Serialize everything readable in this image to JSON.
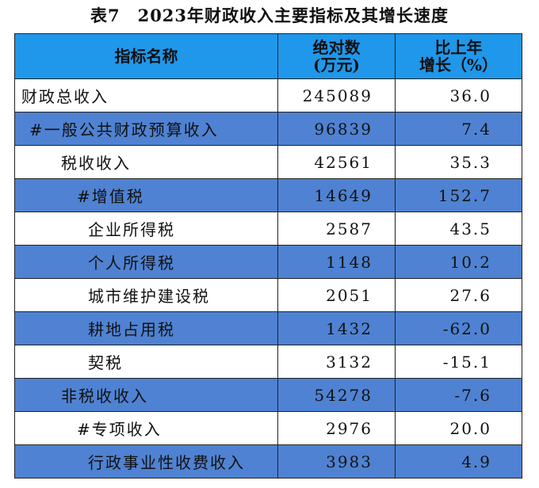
{
  "title": "表7　2023年财政收入主要指标及其增长速度",
  "table": {
    "header": [
      [
        "指标名称"
      ],
      [
        "绝对数",
        "(万元)"
      ],
      [
        "比上年",
        "增长（%）"
      ]
    ],
    "rows": [
      [
        "财政总收入",
        "245089",
        "36.0"
      ],
      [
        "#一般公共财政预算收入",
        "96839",
        "7.4"
      ],
      [
        "税收收入",
        "42561",
        "35.3"
      ],
      [
        "#增值税",
        "14649",
        "152.7"
      ],
      [
        "企业所得税",
        "2587",
        "43.5"
      ],
      [
        "个人所得税",
        "1148",
        "10.2"
      ],
      [
        "城市维护建设税",
        "2051",
        "27.6"
      ],
      [
        "耕地占用税",
        "1432",
        "-62.0"
      ],
      [
        "契税",
        "3132",
        "-15.1"
      ],
      [
        "非税收收入",
        "54278",
        "-7.6"
      ],
      [
        "#专项收入",
        "2976",
        "20.0"
      ],
      [
        "行政事业性收费收入",
        "3983",
        "4.9"
      ]
    ]
  }
}
